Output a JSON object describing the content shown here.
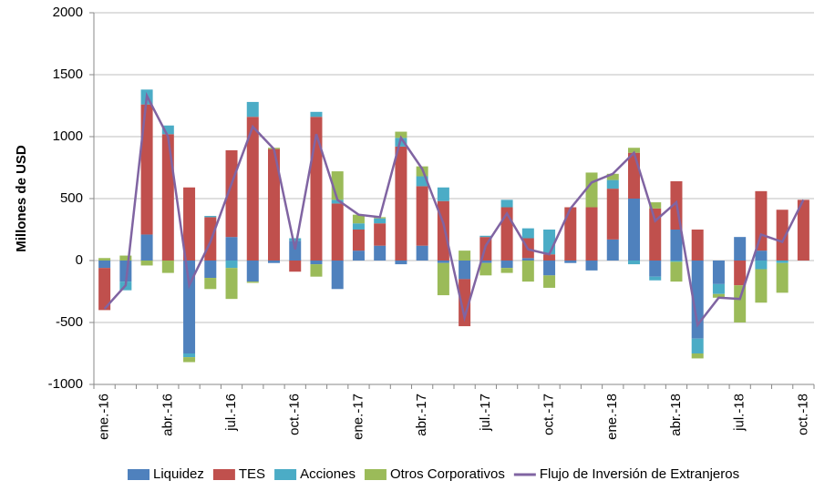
{
  "chart_data": {
    "type": "bar",
    "y_label": "Millones de USD",
    "categories": [
      "ene.-16",
      null,
      null,
      "abr.-16",
      null,
      null,
      "jul.-16",
      null,
      null,
      "oct.-16",
      null,
      null,
      "ene.-17",
      null,
      null,
      "abr.-17",
      null,
      null,
      "jul.-17",
      null,
      null,
      "oct.-17",
      null,
      null,
      "ene.-18",
      null,
      null,
      "abr.-18",
      null,
      null,
      "jul.-18",
      null,
      null,
      "oct.-18"
    ],
    "ylim": [
      -1000,
      2000
    ],
    "yticks": [
      -1000,
      -500,
      0,
      500,
      1000,
      1500,
      2000
    ],
    "grid": true,
    "stacked": true,
    "legend": "bottom",
    "series": [
      {
        "name": "Liquidez",
        "color": "#4f81bd",
        "values": [
          -60,
          -170,
          210,
          0,
          -750,
          -140,
          190,
          -170,
          -20,
          160,
          -30,
          -230,
          80,
          120,
          -30,
          120,
          -20,
          -150,
          -20,
          -60,
          20,
          -120,
          -20,
          -80,
          170,
          500,
          -130,
          250,
          -630,
          -190,
          190,
          80,
          0,
          0
        ]
      },
      {
        "name": "TES",
        "color": "#c0504d",
        "values": [
          -340,
          0,
          1050,
          1020,
          590,
          350,
          700,
          1160,
          900,
          -90,
          1160,
          460,
          170,
          180,
          920,
          480,
          480,
          -380,
          190,
          430,
          160,
          50,
          430,
          430,
          410,
          370,
          420,
          390,
          250,
          0,
          -200,
          480,
          410,
          490
        ]
      },
      {
        "name": "Acciones",
        "color": "#4bacc6",
        "values": [
          0,
          -70,
          120,
          70,
          -30,
          10,
          -60,
          120,
          0,
          20,
          40,
          30,
          50,
          40,
          70,
          80,
          110,
          0,
          10,
          60,
          80,
          200,
          0,
          0,
          70,
          -30,
          -30,
          -10,
          -120,
          -80,
          0,
          -70,
          -20,
          0
        ]
      },
      {
        "name": "Otros Corporativos",
        "color": "#9bbb59",
        "values": [
          20,
          40,
          -40,
          -100,
          -40,
          -90,
          -250,
          -10,
          10,
          0,
          -100,
          230,
          70,
          10,
          50,
          80,
          -260,
          80,
          -100,
          -40,
          -170,
          -100,
          0,
          280,
          50,
          40,
          50,
          -160,
          -40,
          -30,
          -300,
          -270,
          -240,
          0
        ]
      },
      {
        "name": "Flujo de Inversión de Extranjeros",
        "type": "line",
        "color": "#8064a2",
        "values": [
          -390,
          -200,
          1330,
          1000,
          -200,
          150,
          620,
          1080,
          900,
          90,
          1020,
          490,
          370,
          350,
          990,
          740,
          300,
          -460,
          120,
          380,
          90,
          50,
          420,
          630,
          700,
          870,
          320,
          470,
          -520,
          -300,
          -310,
          210,
          150,
          490
        ]
      }
    ]
  }
}
